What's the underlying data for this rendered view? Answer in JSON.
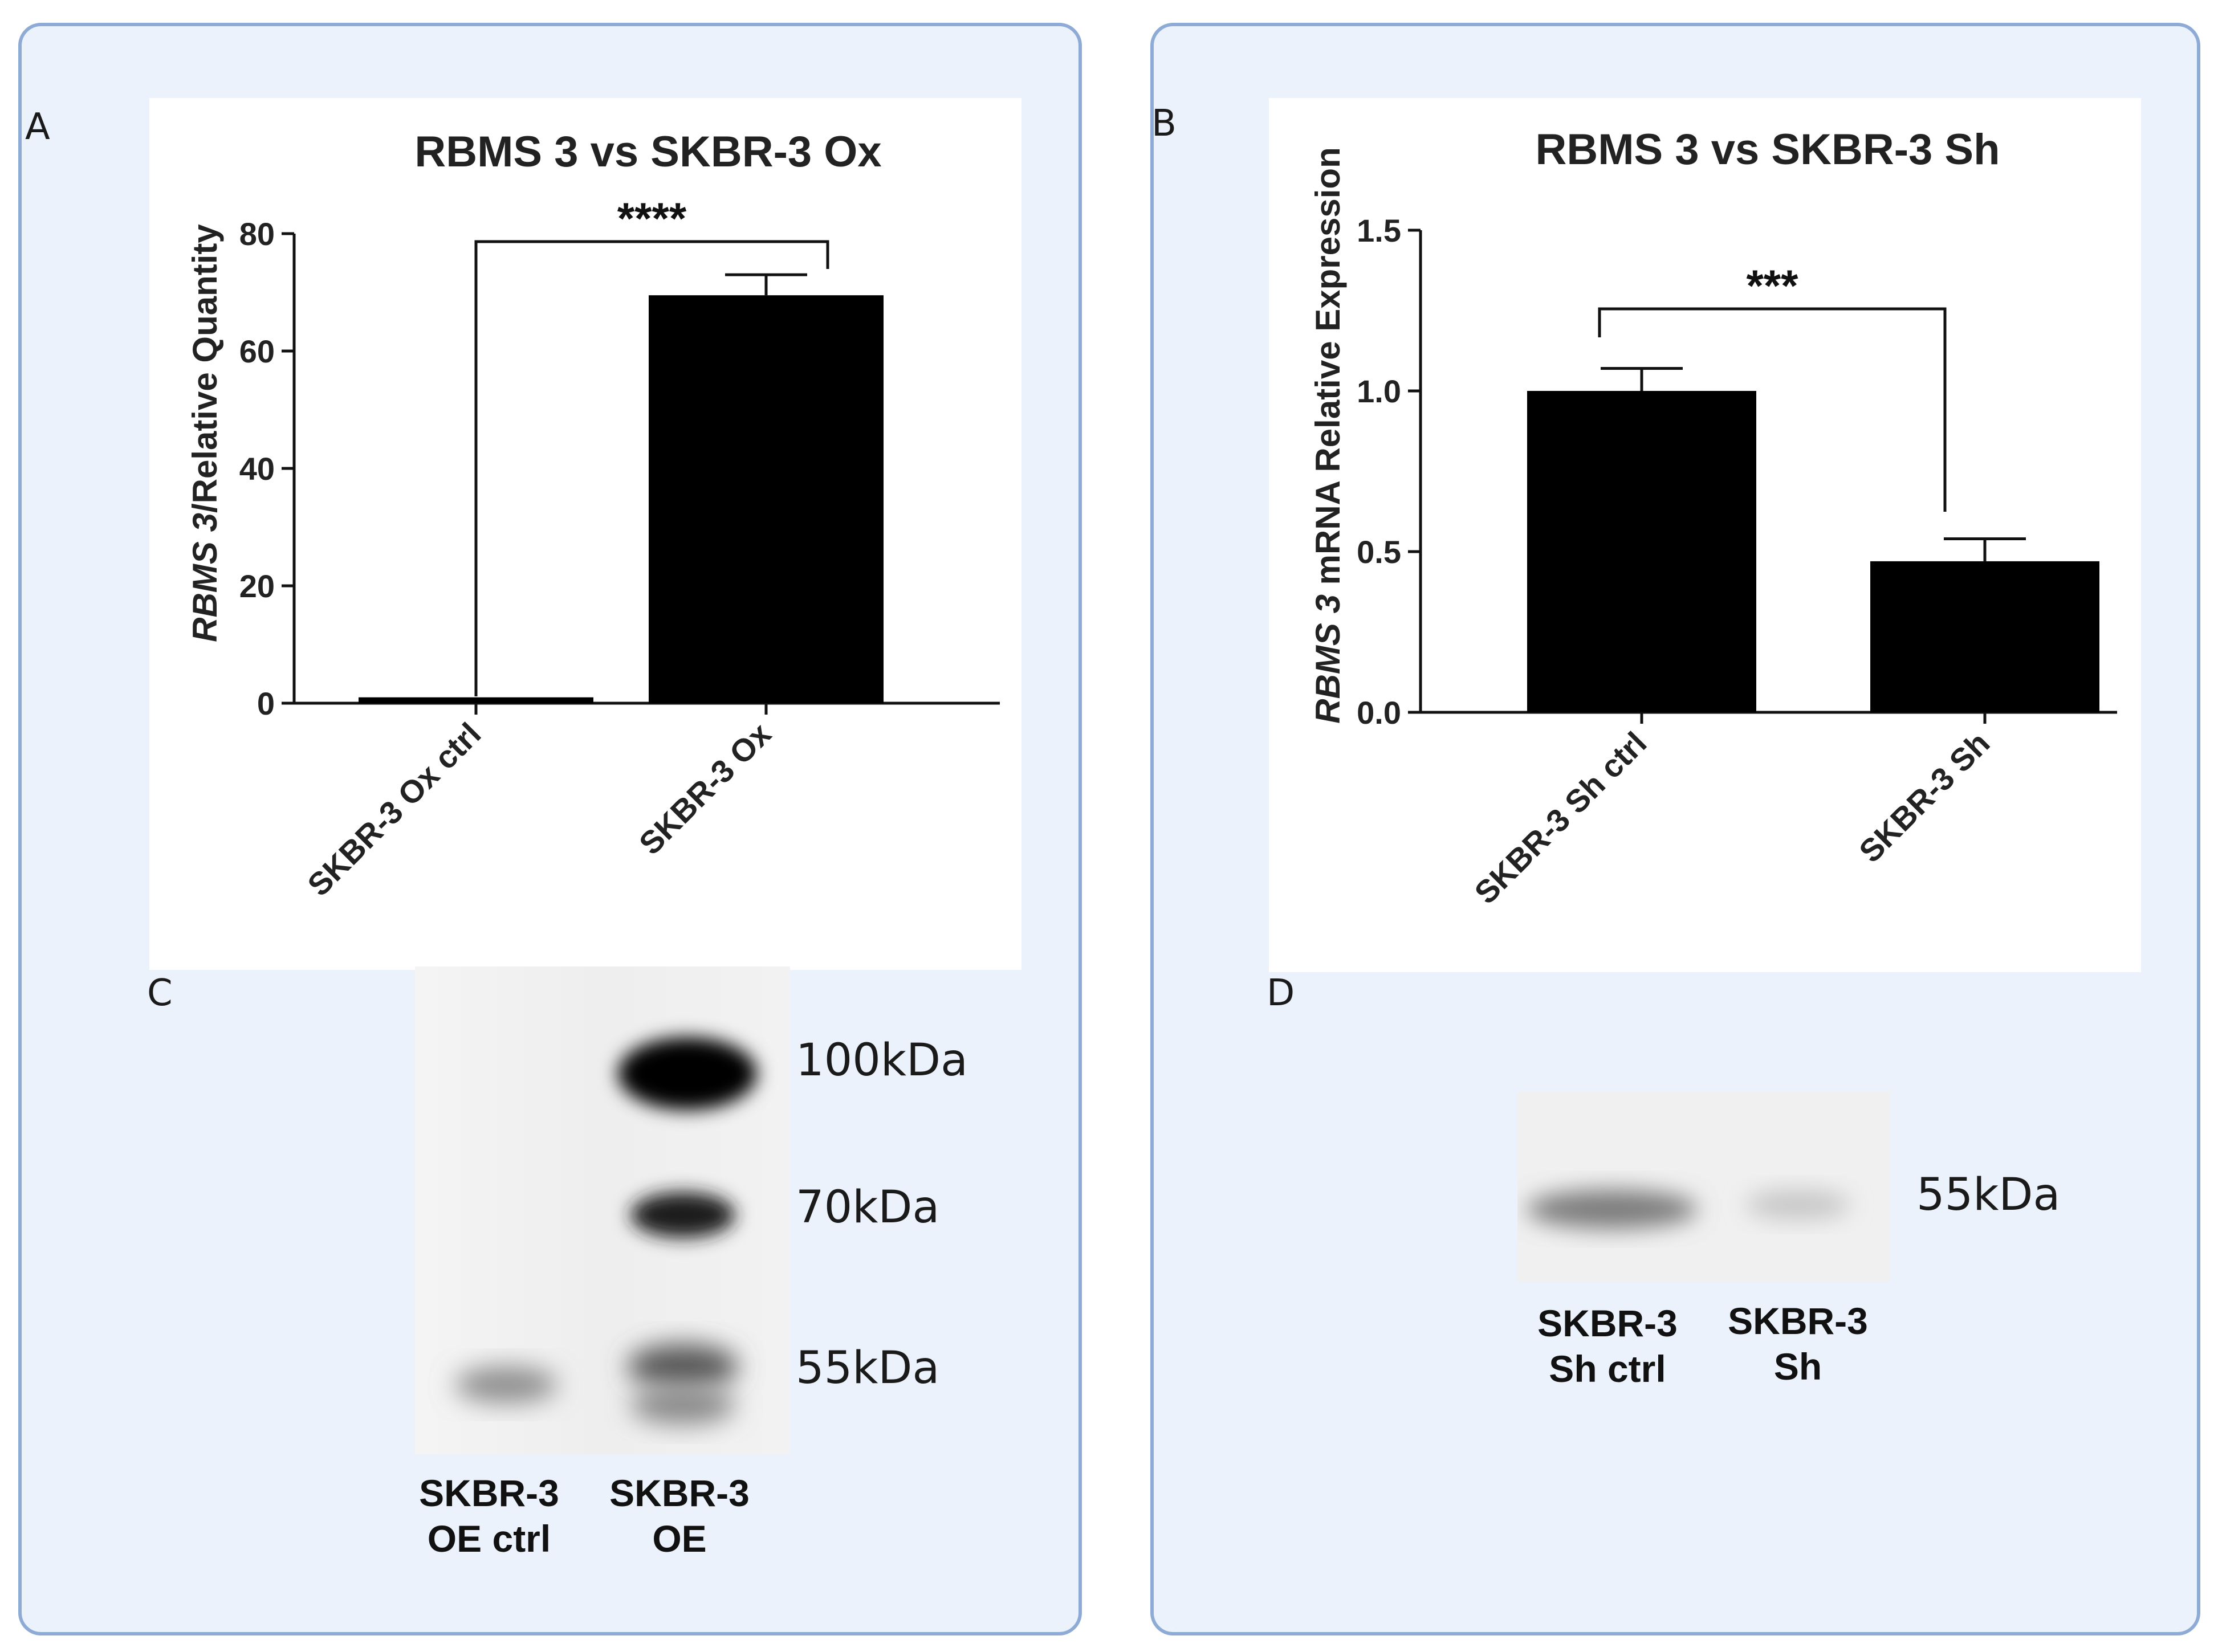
{
  "panels": {
    "A": {
      "letter": "A"
    },
    "B": {
      "letter": "B"
    },
    "C": {
      "letter": "C"
    },
    "D": {
      "letter": "D"
    }
  },
  "chart_data": [
    {
      "type": "bar",
      "title": "RBMS 3 vs SKBR-3 Ox",
      "ylabel": "RBMS 3/Relative Quantity",
      "ylabel_italic_part": "RBMS 3",
      "ylabel_rest": "/Relative Quantity",
      "categories": [
        "SKBR-3 Ox ctrl",
        "SKBR-3 Ox"
      ],
      "values": [
        1,
        69.5
      ],
      "errors": [
        0,
        3.5
      ],
      "ylim": [
        0,
        80
      ],
      "yticks": [
        "0",
        "20",
        "40",
        "60",
        "80"
      ],
      "bar_fills": [
        "#000000",
        "#000000"
      ],
      "significance": "****"
    },
    {
      "type": "bar",
      "title": "RBMS 3 vs SKBR-3 Sh",
      "ylabel": "RBMS 3 mRNA Relative Expression",
      "ylabel_italic_part": "RBMS 3",
      "ylabel_rest": " mRNA Relative Expression",
      "categories": [
        "SKBR-3 Sh ctrl",
        "SKBR-3 Sh"
      ],
      "values": [
        1.0,
        0.47
      ],
      "errors": [
        0.07,
        0.07
      ],
      "ylim": [
        0,
        1.5
      ],
      "yticks": [
        "0.0",
        "0.5",
        "1.0",
        "1.5"
      ],
      "bar_fills": [
        "#000000",
        "#000000"
      ],
      "significance": "***"
    }
  ],
  "blot_C": {
    "markers": [
      "100kDa",
      "70kDa",
      "55kDa"
    ],
    "lanes": [
      {
        "line1": "SKBR-3",
        "line2": "OE ctrl"
      },
      {
        "line1": "SKBR-3",
        "line2": "OE"
      }
    ]
  },
  "blot_D": {
    "markers": [
      "55kDa"
    ],
    "lanes": [
      {
        "line1": "SKBR-3",
        "line2": "Sh ctrl"
      },
      {
        "line1": "SKBR-3",
        "line2": "Sh"
      }
    ]
  }
}
